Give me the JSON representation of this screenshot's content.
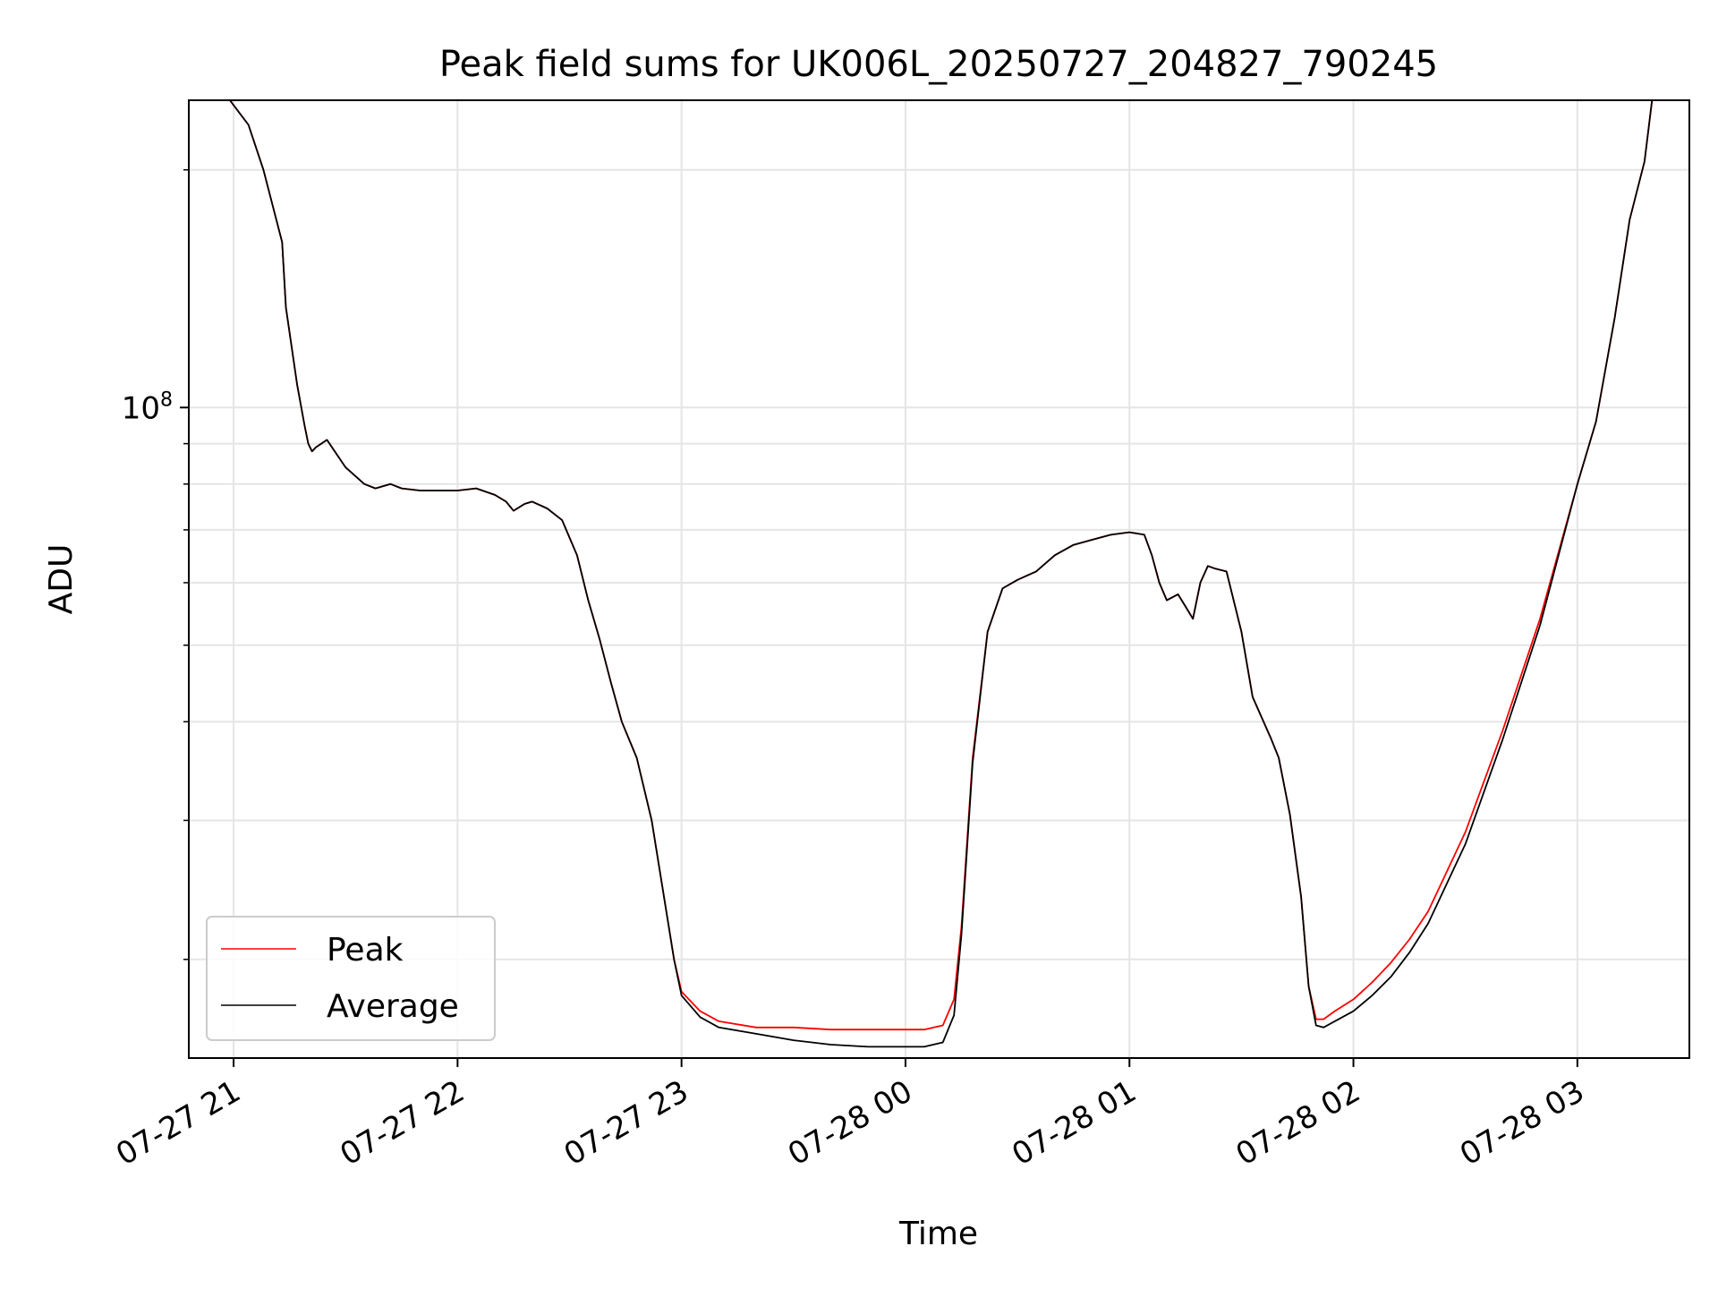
{
  "chart_data": {
    "type": "line",
    "title": "Peak field sums for UK006L_20250727_204827_790245",
    "xlabel": "Time",
    "ylabel": "ADU",
    "y_scale": "log",
    "y_tick_major_label": {
      "base": "10",
      "exp": "8",
      "value": 100000000
    },
    "x_tick_labels": [
      "07-27 21",
      "07-27 22",
      "07-27 23",
      "07-28 00",
      "07-28 01",
      "07-28 02",
      "07-28 03"
    ],
    "x_ticks": [
      "2025-07-27 21:00",
      "2025-07-27 22:00",
      "2025-07-27 23:00",
      "2025-07-28 00:00",
      "2025-07-28 01:00",
      "2025-07-28 02:00",
      "2025-07-28 03:00"
    ],
    "xlim": [
      "2025-07-27 20:48",
      "2025-07-28 03:30"
    ],
    "ylim": [
      15000000,
      245000000
    ],
    "y_minor_ticks": [
      20000000,
      30000000,
      40000000,
      50000000,
      60000000,
      70000000,
      80000000,
      90000000,
      200000000
    ],
    "grid": true,
    "legend_position": "lower-left",
    "series": [
      {
        "name": "Peak",
        "color": "#ff0000",
        "x": [
          "2025-07-27 20:59",
          "2025-07-27 21:04",
          "2025-07-27 21:08",
          "2025-07-27 21:13",
          "2025-07-27 21:14",
          "2025-07-27 21:17",
          "2025-07-27 21:19",
          "2025-07-27 21:20",
          "2025-07-27 21:21",
          "2025-07-27 21:22",
          "2025-07-27 21:25",
          "2025-07-27 21:30",
          "2025-07-27 21:35",
          "2025-07-27 21:38",
          "2025-07-27 21:42",
          "2025-07-27 21:45",
          "2025-07-27 21:50",
          "2025-07-27 21:55",
          "2025-07-27 22:00",
          "2025-07-27 22:05",
          "2025-07-27 22:10",
          "2025-07-27 22:13",
          "2025-07-27 22:15",
          "2025-07-27 22:18",
          "2025-07-27 22:20",
          "2025-07-27 22:24",
          "2025-07-27 22:28",
          "2025-07-27 22:32",
          "2025-07-27 22:35",
          "2025-07-27 22:38",
          "2025-07-27 22:41",
          "2025-07-27 22:44",
          "2025-07-27 22:48",
          "2025-07-27 22:52",
          "2025-07-27 22:55",
          "2025-07-27 22:58",
          "2025-07-27 23:00",
          "2025-07-27 23:05",
          "2025-07-27 23:10",
          "2025-07-27 23:20",
          "2025-07-27 23:30",
          "2025-07-27 23:40",
          "2025-07-27 23:50",
          "2025-07-28 00:00",
          "2025-07-28 00:05",
          "2025-07-28 00:10",
          "2025-07-28 00:13",
          "2025-07-28 00:15",
          "2025-07-28 00:18",
          "2025-07-28 00:22",
          "2025-07-28 00:26",
          "2025-07-28 00:30",
          "2025-07-28 00:35",
          "2025-07-28 00:40",
          "2025-07-28 00:45",
          "2025-07-28 00:50",
          "2025-07-28 00:55",
          "2025-07-28 01:00",
          "2025-07-28 01:04",
          "2025-07-28 01:06",
          "2025-07-28 01:08",
          "2025-07-28 01:10",
          "2025-07-28 01:13",
          "2025-07-28 01:15",
          "2025-07-28 01:17",
          "2025-07-28 01:19",
          "2025-07-28 01:21",
          "2025-07-28 01:23",
          "2025-07-28 01:26",
          "2025-07-28 01:30",
          "2025-07-28 01:33",
          "2025-07-28 01:38",
          "2025-07-28 01:40",
          "2025-07-28 01:43",
          "2025-07-28 01:46",
          "2025-07-28 01:48",
          "2025-07-28 01:50",
          "2025-07-28 01:52",
          "2025-07-28 01:55",
          "2025-07-28 02:00",
          "2025-07-28 02:05",
          "2025-07-28 02:10",
          "2025-07-28 02:15",
          "2025-07-28 02:20",
          "2025-07-28 02:30",
          "2025-07-28 02:40",
          "2025-07-28 02:50",
          "2025-07-28 03:00",
          "2025-07-28 03:05",
          "2025-07-28 03:10",
          "2025-07-28 03:14",
          "2025-07-28 03:18",
          "2025-07-28 03:20"
        ],
        "y": [
          245000000,
          228000000,
          200000000,
          162000000,
          134000000,
          107000000,
          95000000,
          90000000,
          88000000,
          89000000,
          91000000,
          84000000,
          80000000,
          79000000,
          80000000,
          79000000,
          78500000,
          78500000,
          78500000,
          79000000,
          77500000,
          76000000,
          74000000,
          75500000,
          76000000,
          74500000,
          72000000,
          65000000,
          57000000,
          51000000,
          45000000,
          40000000,
          36000000,
          30000000,
          24500000,
          20000000,
          18200000,
          17200000,
          16700000,
          16400000,
          16400000,
          16300000,
          16300000,
          16300000,
          16300000,
          16500000,
          17800000,
          22000000,
          36000000,
          52000000,
          59000000,
          60500000,
          62000000,
          65000000,
          67000000,
          68000000,
          69000000,
          69500000,
          69000000,
          65000000,
          60000000,
          57000000,
          58000000,
          56000000,
          54000000,
          60000000,
          63000000,
          62500000,
          62000000,
          52000000,
          43000000,
          38000000,
          36000000,
          30500000,
          24000000,
          18500000,
          16800000,
          16800000,
          17200000,
          17800000,
          18700000,
          19800000,
          21200000,
          23000000,
          29000000,
          39000000,
          54000000,
          80000000,
          96000000,
          130000000,
          173000000,
          205000000,
          245000000
        ]
      },
      {
        "name": "Average",
        "color": "#000000",
        "x": [
          "2025-07-27 20:59",
          "2025-07-27 21:04",
          "2025-07-27 21:08",
          "2025-07-27 21:13",
          "2025-07-27 21:14",
          "2025-07-27 21:17",
          "2025-07-27 21:19",
          "2025-07-27 21:20",
          "2025-07-27 21:21",
          "2025-07-27 21:22",
          "2025-07-27 21:25",
          "2025-07-27 21:30",
          "2025-07-27 21:35",
          "2025-07-27 21:38",
          "2025-07-27 21:42",
          "2025-07-27 21:45",
          "2025-07-27 21:50",
          "2025-07-27 21:55",
          "2025-07-27 22:00",
          "2025-07-27 22:05",
          "2025-07-27 22:10",
          "2025-07-27 22:13",
          "2025-07-27 22:15",
          "2025-07-27 22:18",
          "2025-07-27 22:20",
          "2025-07-27 22:24",
          "2025-07-27 22:28",
          "2025-07-27 22:32",
          "2025-07-27 22:35",
          "2025-07-27 22:38",
          "2025-07-27 22:41",
          "2025-07-27 22:44",
          "2025-07-27 22:48",
          "2025-07-27 22:52",
          "2025-07-27 22:55",
          "2025-07-27 22:58",
          "2025-07-27 23:00",
          "2025-07-27 23:05",
          "2025-07-27 23:10",
          "2025-07-27 23:20",
          "2025-07-27 23:30",
          "2025-07-27 23:40",
          "2025-07-27 23:50",
          "2025-07-28 00:00",
          "2025-07-28 00:05",
          "2025-07-28 00:10",
          "2025-07-28 00:13",
          "2025-07-28 00:15",
          "2025-07-28 00:18",
          "2025-07-28 00:22",
          "2025-07-28 00:26",
          "2025-07-28 00:30",
          "2025-07-28 00:35",
          "2025-07-28 00:40",
          "2025-07-28 00:45",
          "2025-07-28 00:50",
          "2025-07-28 00:55",
          "2025-07-28 01:00",
          "2025-07-28 01:04",
          "2025-07-28 01:06",
          "2025-07-28 01:08",
          "2025-07-28 01:10",
          "2025-07-28 01:13",
          "2025-07-28 01:15",
          "2025-07-28 01:17",
          "2025-07-28 01:19",
          "2025-07-28 01:21",
          "2025-07-28 01:23",
          "2025-07-28 01:26",
          "2025-07-28 01:30",
          "2025-07-28 01:33",
          "2025-07-28 01:38",
          "2025-07-28 01:40",
          "2025-07-28 01:43",
          "2025-07-28 01:46",
          "2025-07-28 01:48",
          "2025-07-28 01:50",
          "2025-07-28 01:52",
          "2025-07-28 01:55",
          "2025-07-28 02:00",
          "2025-07-28 02:05",
          "2025-07-28 02:10",
          "2025-07-28 02:15",
          "2025-07-28 02:20",
          "2025-07-28 02:30",
          "2025-07-28 02:40",
          "2025-07-28 02:50",
          "2025-07-28 03:00",
          "2025-07-28 03:05",
          "2025-07-28 03:10",
          "2025-07-28 03:14",
          "2025-07-28 03:18",
          "2025-07-28 03:20"
        ],
        "y": [
          245000000,
          228000000,
          200000000,
          162000000,
          134000000,
          107000000,
          95000000,
          90000000,
          88000000,
          89000000,
          91000000,
          84000000,
          80000000,
          79000000,
          80000000,
          79000000,
          78500000,
          78500000,
          78500000,
          79000000,
          77500000,
          76000000,
          74000000,
          75500000,
          76000000,
          74500000,
          72000000,
          65000000,
          57000000,
          51000000,
          45000000,
          40000000,
          36000000,
          30000000,
          24500000,
          20000000,
          18000000,
          16900000,
          16400000,
          16100000,
          15800000,
          15600000,
          15500000,
          15500000,
          15500000,
          15700000,
          17000000,
          21500000,
          35500000,
          52000000,
          59000000,
          60500000,
          62000000,
          65000000,
          67000000,
          68000000,
          69000000,
          69500000,
          69000000,
          65000000,
          60000000,
          57000000,
          58000000,
          56000000,
          54000000,
          60000000,
          63000000,
          62500000,
          62000000,
          52000000,
          43000000,
          38000000,
          36000000,
          30500000,
          24000000,
          18500000,
          16500000,
          16400000,
          16700000,
          17200000,
          18000000,
          19000000,
          20400000,
          22200000,
          28000000,
          38000000,
          53000000,
          80000000,
          96000000,
          130000000,
          173000000,
          205000000,
          245000000
        ]
      }
    ]
  }
}
